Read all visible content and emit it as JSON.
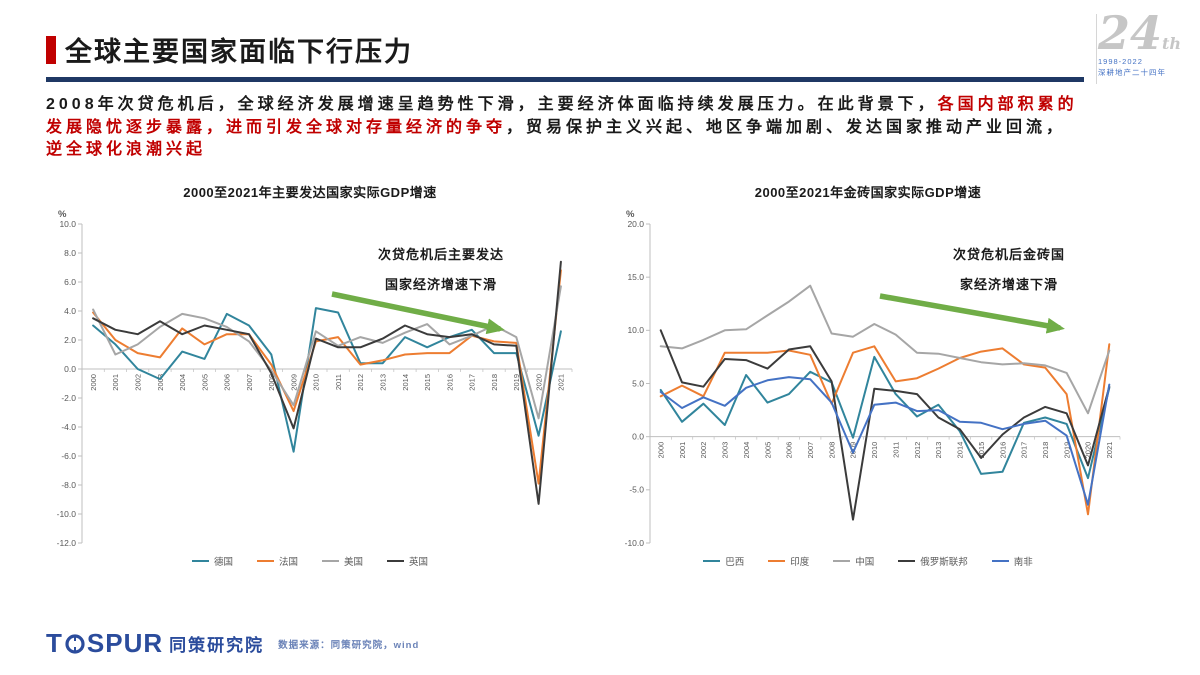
{
  "header": {
    "title": "全球主要国家面临下行压力"
  },
  "badge": {
    "number": "24",
    "suffix": "th",
    "years": "1998-2022",
    "tagline": "深耕地产二十四年"
  },
  "intro_segments": [
    {
      "text": "2008年次贷危机后，全球经济发展增速呈趋势性下滑，主要经济体面临持续发展压力。在此背景下，",
      "color": "#1A1A1A",
      "br": false
    },
    {
      "text": "各国内部积累的",
      "color": "#C00000",
      "br": true
    },
    {
      "text": "发展隐忧逐步暴露，进而引发全球对存量经济的争夺",
      "color": "#C00000",
      "br": false
    },
    {
      "text": "，贸易保护主义兴起、地区争端加剧、发达国家推动产业回流，",
      "color": "#1A1A1A",
      "br": true
    },
    {
      "text": "逆全球化浪潮兴起",
      "color": "#C00000",
      "br": false
    }
  ],
  "colors": {
    "accent_red": "#C00000",
    "navy_bar": "#1F3864",
    "arrow_green": "#70AD47",
    "brand_blue": "#2B4C9C",
    "axis_gray": "#BFBFBF",
    "tick_text": "#595959"
  },
  "chart_data": [
    {
      "type": "line",
      "title": "2000至2021年主要发达国家实际GDP增速",
      "ylabel": "%",
      "ylim": [
        -12,
        10
      ],
      "ytick": 2,
      "grid": false,
      "legend_position": "bottom",
      "annotation_lines": [
        "次贷危机后主要发达",
        "国家经济增速下滑"
      ],
      "categories": [
        "2000",
        "2001",
        "2002",
        "2003",
        "2004",
        "2005",
        "2006",
        "2007",
        "2008",
        "2009",
        "2010",
        "2011",
        "2012",
        "2013",
        "2014",
        "2015",
        "2016",
        "2017",
        "2018",
        "2019",
        "2020",
        "2021"
      ],
      "series": [
        {
          "name": "德国",
          "color": "#31859C",
          "values": [
            3.0,
            1.7,
            0.0,
            -0.7,
            1.2,
            0.7,
            3.8,
            3.0,
            1.0,
            -5.7,
            4.2,
            3.9,
            0.4,
            0.4,
            2.2,
            1.5,
            2.2,
            2.7,
            1.1,
            1.1,
            -4.6,
            2.6
          ]
        },
        {
          "name": "法国",
          "color": "#ED7D31",
          "values": [
            3.9,
            2.0,
            1.1,
            0.8,
            2.8,
            1.7,
            2.4,
            2.4,
            0.3,
            -2.9,
            1.9,
            2.2,
            0.3,
            0.6,
            1.0,
            1.1,
            1.1,
            2.3,
            1.9,
            1.8,
            -7.9,
            6.8
          ]
        },
        {
          "name": "美国",
          "color": "#A6A6A6",
          "values": [
            4.1,
            1.0,
            1.7,
            2.9,
            3.8,
            3.5,
            2.9,
            1.9,
            -0.1,
            -2.5,
            2.6,
            1.6,
            2.2,
            1.8,
            2.5,
            3.1,
            1.7,
            2.3,
            3.0,
            2.2,
            -3.4,
            5.7
          ]
        },
        {
          "name": "英国",
          "color": "#3B3B3B",
          "values": [
            3.5,
            2.7,
            2.4,
            3.3,
            2.4,
            3.0,
            2.7,
            2.4,
            -0.3,
            -4.1,
            2.1,
            1.5,
            1.5,
            2.1,
            3.0,
            2.4,
            2.2,
            2.4,
            1.7,
            1.6,
            -9.3,
            7.4
          ]
        }
      ]
    },
    {
      "type": "line",
      "title": "2000至2021年金砖国家实际GDP增速",
      "ylabel": "%",
      "ylim": [
        -10,
        20
      ],
      "ytick": 5,
      "grid": false,
      "legend_position": "bottom",
      "annotation_lines": [
        "次贷危机后金砖国",
        "家经济增速下滑"
      ],
      "categories": [
        "2000",
        "2001",
        "2002",
        "2003",
        "2004",
        "2005",
        "2006",
        "2007",
        "2008",
        "2009",
        "2010",
        "2011",
        "2012",
        "2013",
        "2014",
        "2015",
        "2016",
        "2017",
        "2018",
        "2019",
        "2020",
        "2021"
      ],
      "series": [
        {
          "name": "巴西",
          "color": "#31859C",
          "values": [
            4.4,
            1.4,
            3.1,
            1.1,
            5.8,
            3.2,
            4.0,
            6.1,
            5.1,
            -0.1,
            7.5,
            4.0,
            1.9,
            3.0,
            0.5,
            -3.5,
            -3.3,
            1.3,
            1.8,
            1.2,
            -3.9,
            4.6
          ]
        },
        {
          "name": "印度",
          "color": "#ED7D31",
          "values": [
            3.8,
            4.8,
            3.8,
            7.9,
            7.9,
            7.9,
            8.1,
            7.7,
            3.1,
            7.9,
            8.5,
            5.2,
            5.5,
            6.4,
            7.4,
            8.0,
            8.3,
            6.8,
            6.5,
            4.0,
            -7.3,
            8.7
          ]
        },
        {
          "name": "中国",
          "color": "#A6A6A6",
          "values": [
            8.5,
            8.3,
            9.1,
            10.0,
            10.1,
            11.4,
            12.7,
            14.2,
            9.7,
            9.4,
            10.6,
            9.6,
            7.9,
            7.8,
            7.4,
            7.0,
            6.8,
            6.9,
            6.7,
            6.0,
            2.2,
            8.1
          ]
        },
        {
          "name": "俄罗斯联邦",
          "color": "#3B3B3B",
          "values": [
            10.0,
            5.1,
            4.7,
            7.3,
            7.2,
            6.4,
            8.2,
            8.5,
            5.2,
            -7.8,
            4.5,
            4.3,
            4.0,
            1.8,
            0.7,
            -2.0,
            0.2,
            1.8,
            2.8,
            2.2,
            -2.7,
            4.7
          ]
        },
        {
          "name": "南非",
          "color": "#4472C4",
          "values": [
            4.2,
            2.7,
            3.7,
            2.9,
            4.6,
            5.3,
            5.6,
            5.4,
            3.2,
            -1.5,
            3.0,
            3.2,
            2.4,
            2.5,
            1.4,
            1.3,
            0.7,
            1.2,
            1.5,
            0.1,
            -6.4,
            4.9
          ]
        }
      ]
    }
  ],
  "footer": {
    "logo_t": "T",
    "logo_rest": "SPUR",
    "brand": "同策研究院",
    "source": "数据来源：同策研究院，wind"
  }
}
